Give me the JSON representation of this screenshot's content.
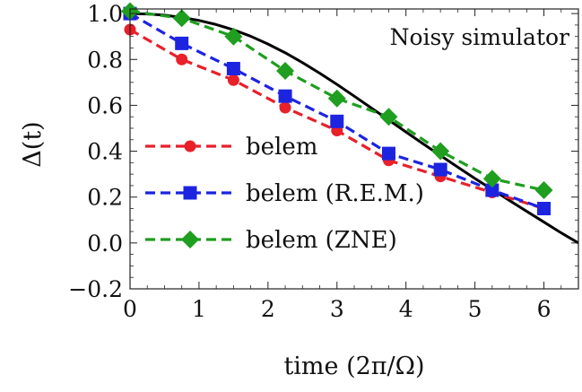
{
  "chart_data": {
    "type": "line",
    "title": "",
    "annotation": "Noisy simulator",
    "xlabel": "time (2π/Ω)",
    "ylabel": "Δ(t)",
    "xlim": [
      0,
      6.5
    ],
    "ylim": [
      -0.2,
      1.02
    ],
    "xticks": [
      0,
      1,
      2,
      3,
      4,
      5,
      6
    ],
    "xtick_labels": [
      "0",
      "1",
      "2",
      "3",
      "4",
      "5",
      "6"
    ],
    "yticks": [
      -0.2,
      0.0,
      0.2,
      0.4,
      0.6,
      0.8,
      1.0
    ],
    "ytick_labels": [
      "−0.2",
      "0.0",
      "0.2",
      "0.4",
      "0.6",
      "0.8",
      "1.0"
    ],
    "grid": false,
    "legend_position": "bottom-left",
    "series": [
      {
        "name": "",
        "kind": "theory-curve",
        "color": "#000000",
        "dashed": false,
        "marker": "none",
        "x": [
          0,
          0.25,
          0.5,
          0.75,
          1.0,
          1.25,
          1.5,
          1.75,
          2.0,
          2.25,
          2.5,
          2.75,
          3.0,
          3.25,
          3.5,
          3.75,
          4.0,
          4.25,
          4.5,
          4.75,
          5.0,
          5.25,
          5.5,
          5.75,
          6.0,
          6.25,
          6.5
        ],
        "y": [
          1.0,
          0.998,
          0.993,
          0.983,
          0.97,
          0.952,
          0.929,
          0.901,
          0.867,
          0.829,
          0.786,
          0.74,
          0.691,
          0.64,
          0.588,
          0.536,
          0.484,
          0.432,
          0.381,
          0.331,
          0.281,
          0.233,
          0.185,
          0.138,
          0.091,
          0.044,
          0.0
        ]
      },
      {
        "name": "belem",
        "color": "#e8202a",
        "dashed": true,
        "marker": "circle",
        "x": [
          0,
          0.75,
          1.5,
          2.25,
          3.0,
          3.75,
          4.5,
          5.25,
          6.0
        ],
        "y": [
          0.93,
          0.8,
          0.71,
          0.59,
          0.49,
          0.36,
          0.29,
          0.22,
          0.15
        ]
      },
      {
        "name": "belem (R.E.M.)",
        "color": "#1c24e0",
        "dashed": true,
        "marker": "square",
        "x": [
          0,
          0.75,
          1.5,
          2.25,
          3.0,
          3.75,
          4.5,
          5.25,
          6.0
        ],
        "y": [
          1.0,
          0.87,
          0.76,
          0.64,
          0.53,
          0.39,
          0.32,
          0.23,
          0.15
        ]
      },
      {
        "name": "belem (ZNE)",
        "color": "#1f9e1f",
        "dashed": true,
        "marker": "diamond",
        "x": [
          0,
          0.75,
          1.5,
          2.25,
          3.0,
          3.75,
          4.5,
          5.25,
          6.0
        ],
        "y": [
          1.01,
          0.98,
          0.9,
          0.75,
          0.63,
          0.55,
          0.4,
          0.28,
          0.23
        ]
      }
    ]
  }
}
